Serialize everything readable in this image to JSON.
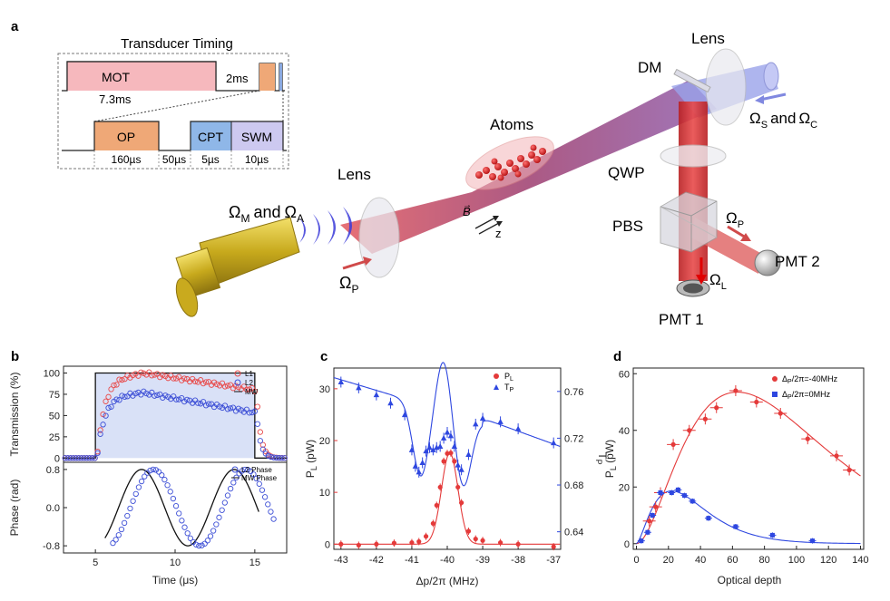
{
  "panel_a": {
    "letter": "a",
    "timing": {
      "title": "Transducer Timing",
      "mot": "MOT",
      "t_2ms": "2ms",
      "t_7_3ms": "7.3ms",
      "op": "OP",
      "cpt": "CPT",
      "swm": "SWM",
      "d_op": "160µs",
      "d_gap": "50µs",
      "d_cpt": "5µs",
      "d_swm": "10µs"
    },
    "labels": {
      "lens_left": "Lens",
      "lens_right": "Lens",
      "atoms": "Atoms",
      "dm": "DM",
      "qwp": "QWP",
      "pbs": "PBS",
      "pmt1": "PMT 1",
      "pmt2": "PMT 2",
      "omega_m": "Ω",
      "omega_m_sub": "M",
      "and": "and",
      "omega_a": "Ω",
      "omega_a_sub": "A",
      "omega_p": "Ω",
      "omega_p_sub": "P",
      "omega_s": "Ω",
      "omega_s_sub": "S",
      "omega_c": "Ω",
      "omega_c_sub": "C",
      "omega_l": "Ω",
      "omega_l_sub": "L",
      "omega_p2": "Ω",
      "omega_p2_sub": "P",
      "b_field": "B",
      "z_axis": "z"
    },
    "colors": {
      "beam_red": "#d63c3c",
      "beam_blue": "#8b93e6",
      "horn_gold": "#d8bf2a",
      "wave_blue": "#3b3bd9"
    }
  },
  "chart_data": [
    {
      "panel": "b",
      "letter": "b",
      "type": "line",
      "top": {
        "ylabel": "Transmission (%)",
        "xlim": [
          3,
          17
        ],
        "ylim": [
          -5,
          108
        ],
        "yticks": [
          "0",
          "25",
          "50",
          "75",
          "100"
        ],
        "legend": [
          "L1",
          "L2",
          "MW"
        ],
        "mw_on": [
          5,
          15
        ],
        "series": [
          {
            "name": "L1",
            "color": "#e84b4b",
            "plateau_start": 90,
            "plateau_peak": 100,
            "plateau_end": 80
          },
          {
            "name": "L2",
            "color": "#3d4fd6",
            "plateau_start": 70,
            "plateau_peak": 77,
            "plateau_end": 53
          },
          {
            "name": "MW",
            "color": "#111111",
            "on": 100,
            "off": 0
          }
        ]
      },
      "bottom": {
        "ylabel": "Phase (rad)",
        "xlabel": "Time (μs)",
        "xlim": [
          3,
          17
        ],
        "ylim": [
          -0.95,
          0.95
        ],
        "yticks": [
          "-0.8",
          "0.0",
          "0.8"
        ],
        "xticks": [
          "5",
          "10",
          "15"
        ],
        "legend": [
          "L2 Phase",
          "MW Phase"
        ],
        "amplitude": 0.8,
        "period": 5.8,
        "mw_peak": 7.9,
        "l2_peak": 8.65,
        "start": 5.6,
        "end": 15.3,
        "l2_end": 16.3
      }
    },
    {
      "panel": "c",
      "letter": "c",
      "type": "scatter",
      "xlabel": "Δp/2π (MHz)",
      "ylabel_left": "P",
      "ylabel_left_sub": "L",
      "ylabel_left_unit": " (pW)",
      "ylabel_right": "T",
      "ylabel_right_sub": "P",
      "xlim": [
        -43.2,
        -36.8
      ],
      "ylim_left": [
        -1,
        34
      ],
      "ylim_right": [
        0.625,
        0.78
      ],
      "xticks": [
        "-43",
        "-42",
        "-41",
        "-40",
        "-39",
        "-38",
        "-37"
      ],
      "yticks_left": [
        "0",
        "10",
        "20",
        "30"
      ],
      "yticks_right": [
        "0.64",
        "0.68",
        "0.72",
        "0.76"
      ],
      "legend": [
        "P",
        "T"
      ],
      "legend_sub": [
        "L",
        "P"
      ],
      "PL": {
        "color": "#e43a3a",
        "x": [
          -43,
          -42.5,
          -42,
          -41.5,
          -41,
          -40.8,
          -40.6,
          -40.4,
          -40.3,
          -40.2,
          -40.1,
          -40,
          -39.9,
          -39.8,
          -39.7,
          -39.6,
          -39.4,
          -39.2,
          -39,
          -38.5,
          -38,
          -37
        ],
        "y": [
          0,
          -0.2,
          0,
          0.2,
          0.3,
          0.5,
          1.5,
          4,
          7.5,
          11,
          16,
          17.5,
          17.6,
          16,
          11,
          8,
          2.5,
          1,
          0.7,
          0.3,
          0,
          -0.5
        ]
      },
      "TP": {
        "color": "#2e47e0",
        "x": [
          -43,
          -42.5,
          -42,
          -41.6,
          -41.2,
          -41,
          -40.9,
          -40.8,
          -40.7,
          -40.6,
          -40.5,
          -40.4,
          -40.3,
          -40.2,
          -40.1,
          -40,
          -39.9,
          -39.8,
          -39.7,
          -39.6,
          -39.4,
          -39.2,
          -39,
          -38.5,
          -38,
          -37
        ],
        "y": [
          0.768,
          0.763,
          0.757,
          0.75,
          0.74,
          0.71,
          0.696,
          0.691,
          0.699,
          0.709,
          0.712,
          0.71,
          0.712,
          0.713,
          0.72,
          0.725,
          0.722,
          0.713,
          0.697,
          0.693,
          0.706,
          0.732,
          0.737,
          0.734,
          0.728,
          0.716
        ]
      }
    },
    {
      "panel": "d",
      "letter": "d",
      "type": "scatter",
      "xlabel": "Optical depth",
      "ylabel": "P",
      "ylabel_sub": "L",
      "ylabel_unit": " (pW)",
      "xlim": [
        -2,
        142
      ],
      "ylim": [
        -2,
        62
      ],
      "xticks": [
        "0",
        "20",
        "40",
        "60",
        "80",
        "100",
        "120",
        "140"
      ],
      "yticks": [
        "0",
        "20",
        "40",
        "60"
      ],
      "legend": [
        "Δ",
        "Δ"
      ],
      "legend_sub": [
        "P",
        "P"
      ],
      "legend_rest": [
        "/2π=-40MHz",
        "/2π=0MHz"
      ],
      "red": {
        "color": "#e43a3a",
        "x": [
          8,
          12,
          15,
          23,
          33,
          43,
          50,
          62,
          75,
          90,
          107,
          125,
          133
        ],
        "y": [
          8,
          13,
          18,
          35,
          40,
          44,
          48,
          54,
          50,
          46,
          37,
          31,
          26
        ]
      },
      "blue": {
        "color": "#2e47e0",
        "x": [
          3,
          7,
          10,
          15,
          22,
          26,
          30,
          35,
          45,
          62,
          85,
          110
        ],
        "y": [
          1,
          4,
          10,
          18,
          18,
          19,
          17,
          15,
          9,
          6,
          3,
          1
        ]
      }
    }
  ]
}
